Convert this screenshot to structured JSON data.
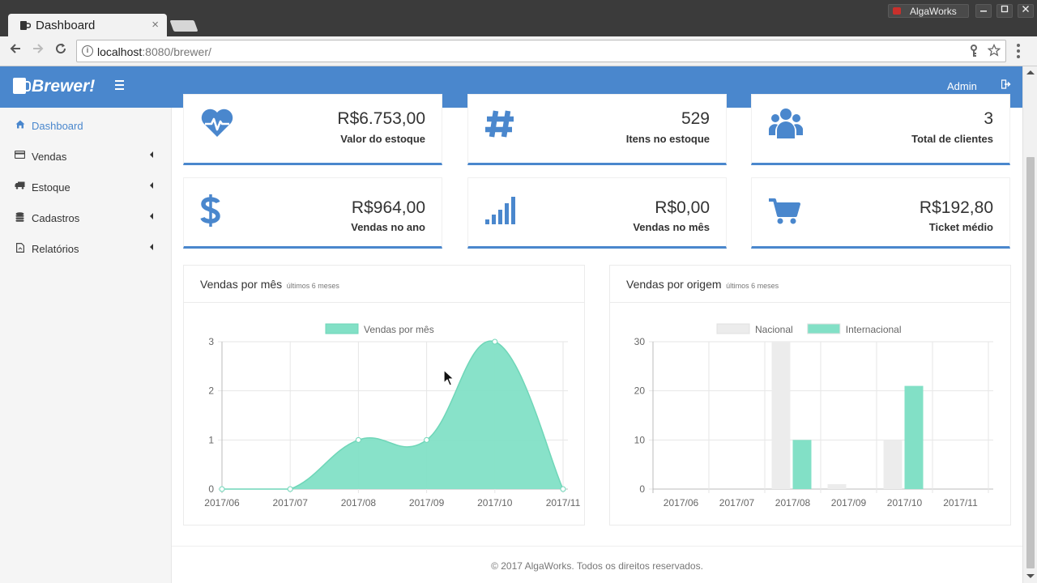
{
  "browser": {
    "tab_title": "Dashboard",
    "tab_close": "×",
    "window_brand": "AlgaWorks",
    "url_host": "localhost",
    "url_rest": ":8080/brewer/"
  },
  "header": {
    "brand": "Brewer!",
    "user": "Admin"
  },
  "sidebar": {
    "items": [
      {
        "label": "Dashboard",
        "icon": "home-icon",
        "active": true
      },
      {
        "label": "Vendas",
        "icon": "credit-card-icon"
      },
      {
        "label": "Estoque",
        "icon": "truck-icon"
      },
      {
        "label": "Cadastros",
        "icon": "database-icon"
      },
      {
        "label": "Relatórios",
        "icon": "file-icon"
      }
    ]
  },
  "stats": [
    {
      "value": "R$6.753,00",
      "label": "Valor do estoque",
      "icon": "heartbeat-icon"
    },
    {
      "value": "529",
      "label": "Itens no estoque",
      "icon": "hashtag-icon"
    },
    {
      "value": "3",
      "label": "Total de clientes",
      "icon": "users-icon"
    },
    {
      "value": "R$964,00",
      "label": "Vendas no ano",
      "icon": "dollar-icon"
    },
    {
      "value": "R$0,00",
      "label": "Vendas no mês",
      "icon": "signal-icon"
    },
    {
      "value": "R$192,80",
      "label": "Ticket médio",
      "icon": "cart-icon"
    }
  ],
  "panels": {
    "monthly": {
      "title": "Vendas por mês",
      "subtitle": "últimos 6 meses"
    },
    "origin": {
      "title": "Vendas por origem",
      "subtitle": "últimos 6 meses"
    }
  },
  "chart_data": [
    {
      "type": "area",
      "categories": [
        "2017/06",
        "2017/07",
        "2017/08",
        "2017/09",
        "2017/10",
        "2017/11"
      ],
      "series": [
        {
          "name": "Vendas por mês",
          "values": [
            0,
            0,
            1,
            1,
            3,
            0
          ],
          "color": "#82e0c6"
        }
      ],
      "yticks": [
        0,
        1,
        2,
        3
      ],
      "ylim": [
        0,
        3
      ],
      "legend": "top",
      "grid": true
    },
    {
      "type": "bar",
      "categories": [
        "2017/06",
        "2017/07",
        "2017/08",
        "2017/09",
        "2017/10",
        "2017/11"
      ],
      "series": [
        {
          "name": "Nacional",
          "values": [
            0,
            0,
            30,
            1,
            10,
            0
          ],
          "color": "#ececec"
        },
        {
          "name": "Internacional",
          "values": [
            0,
            0,
            10,
            0,
            21,
            0
          ],
          "color": "#82e0c6"
        }
      ],
      "yticks": [
        0,
        10,
        20,
        30
      ],
      "ylim": [
        0,
        30
      ],
      "legend": "top",
      "grid": true
    }
  ],
  "footer": "© 2017 AlgaWorks. Todos os direitos reservados."
}
